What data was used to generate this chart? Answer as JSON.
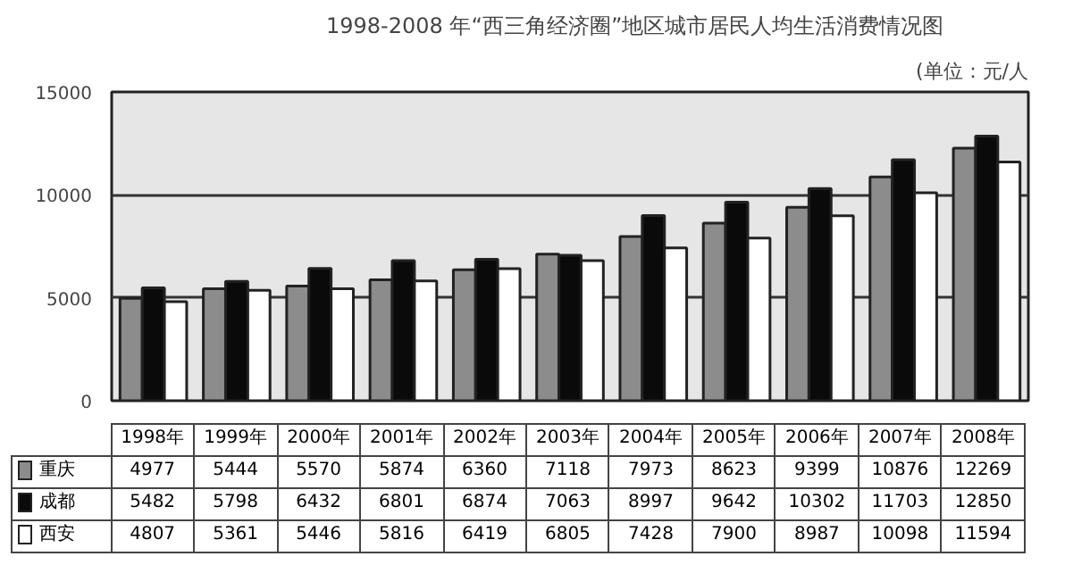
{
  "chart_data": {
    "type": "bar",
    "title": "1998-2008 年“西三角经济圈”地区城市居民人均生活消费情况图",
    "annotations": [
      "(单位：元/人"
    ],
    "categories": [
      "1998年",
      "1999年",
      "2000年",
      "2001年",
      "2002年",
      "2003年",
      "2004年",
      "2005年",
      "2006年",
      "2007年",
      "2008年"
    ],
    "series": [
      {
        "name": "重庆",
        "color": "#8c8c8c",
        "values": [
          4977,
          5444,
          5570,
          5874,
          6360,
          7118,
          7973,
          8623,
          9399,
          10876,
          12269
        ]
      },
      {
        "name": "成都",
        "color": "#0a0a0a",
        "values": [
          5482,
          5798,
          6432,
          6801,
          6874,
          7063,
          8997,
          9642,
          10302,
          11703,
          12850
        ]
      },
      {
        "name": "西安",
        "color": "#ffffff",
        "values": [
          4807,
          5361,
          5446,
          5816,
          6419,
          6805,
          7428,
          7900,
          8987,
          10098,
          11594
        ]
      }
    ],
    "ylim": [
      0,
      15000
    ],
    "yticks": [
      0,
      5000,
      10000,
      15000
    ],
    "grid": "y",
    "legend": "bottom left",
    "data_labels": true
  }
}
